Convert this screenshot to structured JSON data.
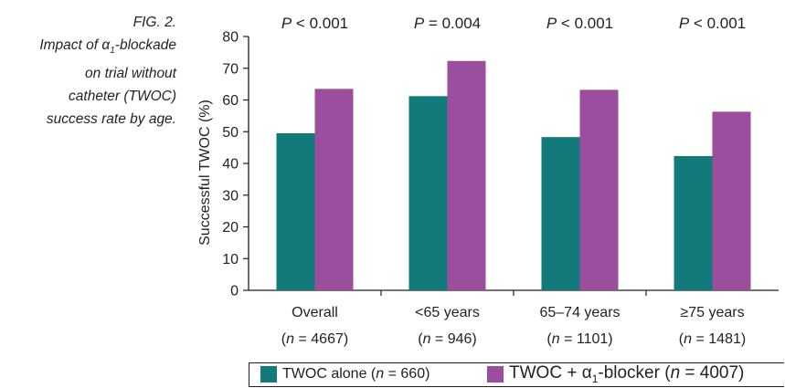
{
  "caption": {
    "label": "FIG. 2.",
    "line1": "Impact of α",
    "line1_sub": "1",
    "line1_end": "-blockade",
    "line2": "on trial without",
    "line3": "catheter (TWOC)",
    "line4": "success rate by age."
  },
  "colors": {
    "series_a": "#127a7a",
    "series_b": "#9c4e9e",
    "axis": "#231f20"
  },
  "chart_data": {
    "type": "bar",
    "title": "",
    "ylabel": "Successful TWOC (%)",
    "xlabel": "",
    "ylim": [
      0,
      80
    ],
    "yticks": [
      0,
      10,
      20,
      30,
      40,
      50,
      60,
      70,
      80
    ],
    "grid": false,
    "legend_position": "bottom",
    "categories": [
      {
        "line1": "Overall",
        "line2_pre": "(",
        "n_symbol": "n",
        "line2_post": " = 4667)"
      },
      {
        "line1": "<65 years",
        "line2_pre": "(",
        "n_symbol": "n",
        "line2_post": " = 946)"
      },
      {
        "line1": "65–74 years",
        "line2_pre": "(",
        "n_symbol": "n",
        "line2_post": " = 1101)"
      },
      {
        "line1": "≥75 years",
        "line2_pre": "(",
        "n_symbol": "n",
        "line2_post": " = 1481)"
      }
    ],
    "p_values": [
      {
        "symbol": "P",
        "rest": " < 0.001"
      },
      {
        "symbol": "P",
        "rest": " = 0.004"
      },
      {
        "symbol": "P",
        "rest": " < 0.001"
      },
      {
        "symbol": "P",
        "rest": " < 0.001"
      }
    ],
    "series": [
      {
        "name": "TWOC alone (n = 660)",
        "values": [
          49.5,
          61.2,
          48.3,
          42.3
        ]
      },
      {
        "name": "TWOC + α1-blocker (n = 4007)",
        "values": [
          63.5,
          72.3,
          63.2,
          56.3
        ]
      }
    ]
  },
  "legend": {
    "a_pre": "TWOC alone (",
    "a_n": "n",
    "a_post": " = 660)",
    "b_pre": "TWOC + α",
    "b_sub": "1",
    "b_mid": "-blocker (",
    "b_n": "n",
    "b_post": " = 4007)"
  }
}
